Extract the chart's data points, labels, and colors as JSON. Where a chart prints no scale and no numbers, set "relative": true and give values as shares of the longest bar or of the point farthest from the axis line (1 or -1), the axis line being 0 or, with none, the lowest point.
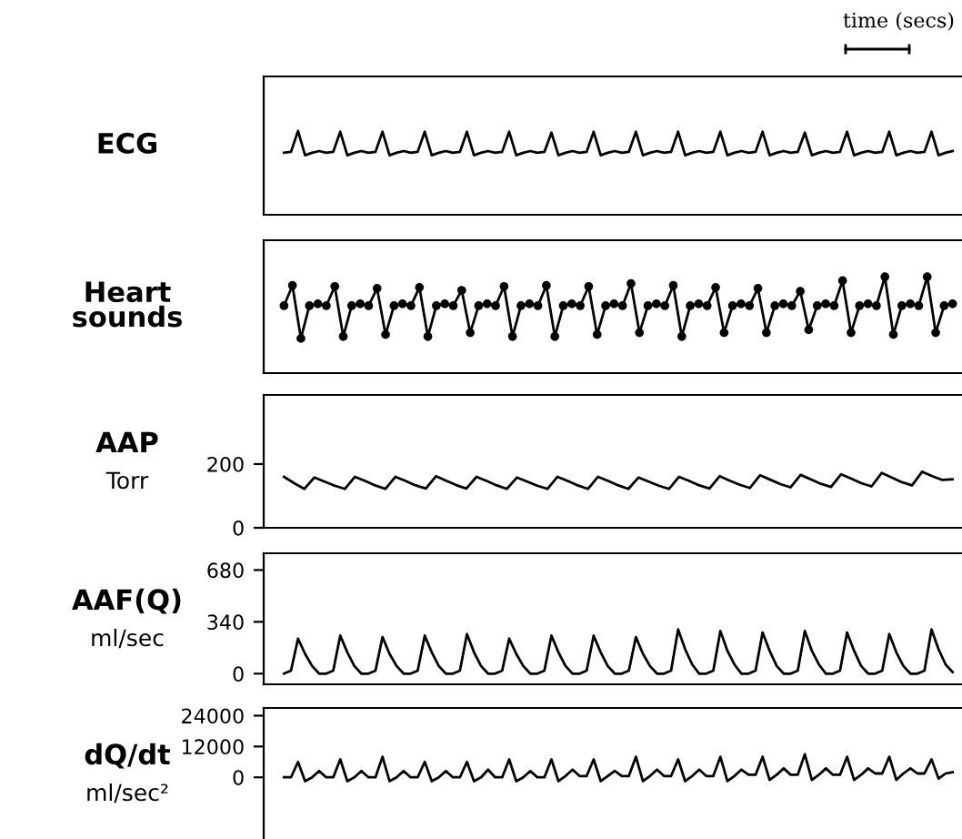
{
  "chart_data": [
    {
      "type": "line",
      "title": "ECG",
      "relative": true,
      "tick_labels": false,
      "grid": false,
      "annotations": [
        "time (secs)"
      ],
      "categories": [
        null,
        null,
        null,
        null,
        null,
        null,
        null,
        null,
        null,
        null,
        null,
        null,
        null,
        null,
        null,
        null,
        null,
        null,
        null,
        null,
        null,
        null,
        null,
        null,
        null,
        null,
        null,
        null,
        null,
        null,
        null,
        null,
        null,
        null,
        null,
        null,
        null,
        null,
        null,
        null,
        null,
        null,
        null,
        null,
        null,
        null,
        null,
        null,
        null,
        null,
        null,
        null,
        null,
        null,
        null,
        null,
        null,
        null,
        null,
        null,
        null,
        null,
        null,
        null,
        null,
        null,
        null,
        null,
        null,
        null,
        null,
        null,
        null,
        null,
        null,
        null,
        null,
        null,
        null,
        null,
        null,
        null,
        null,
        null,
        null,
        null,
        null,
        null,
        null,
        null,
        null,
        null,
        null,
        null,
        null,
        null
      ],
      "series": [
        {
          "color": "#000000",
          "values": [
            0.74,
            0.75,
            1,
            0.71,
            0.74,
            0.76,
            0.74,
            0.75,
            0.99,
            0.71,
            0.74,
            0.76,
            0.74,
            0.75,
            0.99,
            0.71,
            0.74,
            0.76,
            0.74,
            0.75,
            0.99,
            0.71,
            0.74,
            0.76,
            0.74,
            0.75,
            0.99,
            0.71,
            0.74,
            0.76,
            0.74,
            0.75,
            0.99,
            0.71,
            0.74,
            0.76,
            0.74,
            0.75,
            0.98,
            0.71,
            0.74,
            0.76,
            0.74,
            0.75,
            0.99,
            0.71,
            0.74,
            0.76,
            0.74,
            0.75,
            0.99,
            0.71,
            0.74,
            0.76,
            0.74,
            0.75,
            0.99,
            0.71,
            0.74,
            0.76,
            0.74,
            0.75,
            0.99,
            0.71,
            0.74,
            0.76,
            0.74,
            0.75,
            0.99,
            0.71,
            0.74,
            0.76,
            0.74,
            0.75,
            0.98,
            0.71,
            0.74,
            0.76,
            0.74,
            0.75,
            0.99,
            0.71,
            0.74,
            0.76,
            0.74,
            0.75,
            0.99,
            0.71,
            0.74,
            0.76,
            0.74,
            0.75,
            0.99,
            0.71,
            0.74,
            0.76
          ]
        }
      ]
    },
    {
      "type": "line",
      "title": "Heart\nsounds",
      "relative": true,
      "tick_labels": false,
      "grid": false,
      "marker": "circle",
      "categories": [
        null,
        null,
        null,
        null,
        null,
        null,
        null,
        null,
        null,
        null,
        null,
        null,
        null,
        null,
        null,
        null,
        null,
        null,
        null,
        null,
        null,
        null,
        null,
        null,
        null,
        null,
        null,
        null,
        null,
        null,
        null,
        null,
        null,
        null,
        null,
        null,
        null,
        null,
        null,
        null,
        null,
        null,
        null,
        null,
        null,
        null,
        null,
        null,
        null,
        null,
        null,
        null,
        null,
        null,
        null,
        null,
        null,
        null,
        null,
        null,
        null,
        null,
        null,
        null,
        null,
        null,
        null,
        null,
        null,
        null,
        null,
        null,
        null,
        null,
        null,
        null,
        null,
        null,
        null,
        null
      ],
      "series": [
        {
          "color": "#000000",
          "values": [
            0.7,
            0.91,
            0.36,
            0.7,
            0.72,
            0.7,
            0.9,
            0.38,
            0.7,
            0.72,
            0.7,
            0.88,
            0.4,
            0.7,
            0.72,
            0.7,
            0.89,
            0.38,
            0.7,
            0.72,
            0.7,
            0.86,
            0.42,
            0.7,
            0.72,
            0.7,
            0.9,
            0.38,
            0.7,
            0.72,
            0.7,
            0.91,
            0.38,
            0.7,
            0.72,
            0.7,
            0.9,
            0.4,
            0.7,
            0.72,
            0.7,
            0.93,
            0.42,
            0.7,
            0.72,
            0.7,
            0.91,
            0.38,
            0.7,
            0.72,
            0.7,
            0.89,
            0.42,
            0.7,
            0.72,
            0.7,
            0.88,
            0.42,
            0.7,
            0.72,
            0.7,
            0.85,
            0.45,
            0.7,
            0.72,
            0.7,
            0.96,
            0.42,
            0.7,
            0.72,
            0.7,
            1,
            0.4,
            0.7,
            0.72,
            0.7,
            1,
            0.42,
            0.7,
            0.72
          ]
        }
      ]
    },
    {
      "type": "line",
      "title": "AAP",
      "ylabel": "Torr",
      "tick_labels": "y",
      "grid": false,
      "ylim": [
        0,
        417
      ],
      "yticks": [
        0,
        200
      ],
      "categories": [
        null,
        null,
        null,
        null,
        null,
        null,
        null,
        null,
        null,
        null,
        null,
        null,
        null,
        null,
        null,
        null,
        null,
        null,
        null,
        null,
        null,
        null,
        null,
        null,
        null,
        null,
        null,
        null,
        null,
        null,
        null,
        null,
        null,
        null,
        null,
        null,
        null,
        null,
        null,
        null,
        null,
        null,
        null,
        null,
        null,
        null,
        null,
        null,
        null,
        null,
        null,
        null,
        null,
        null,
        null,
        null,
        null,
        null,
        null,
        null,
        null,
        null,
        null,
        null,
        null,
        null,
        null
      ],
      "series": [
        {
          "color": "#000000",
          "values": [
            160,
            140,
            122,
            158,
            145,
            132,
            122,
            160,
            147,
            133,
            122,
            160,
            147,
            133,
            123,
            162,
            148,
            134,
            123,
            160,
            147,
            133,
            122,
            158,
            145,
            132,
            122,
            160,
            147,
            133,
            122,
            160,
            147,
            133,
            122,
            158,
            145,
            132,
            122,
            160,
            147,
            133,
            123,
            162,
            148,
            135,
            125,
            165,
            151,
            137,
            127,
            166,
            152,
            138,
            128,
            168,
            154,
            140,
            130,
            172,
            158,
            143,
            133,
            176,
            162,
            150,
            152
          ]
        }
      ]
    },
    {
      "type": "line",
      "title": "AAF(Q)",
      "ylabel": "ml/sec",
      "tick_labels": "y",
      "grid": false,
      "ylim": [
        -70,
        790
      ],
      "yticks": [
        0,
        340,
        680
      ],
      "categories": [
        null,
        null,
        null,
        null,
        null,
        null,
        null,
        null,
        null,
        null,
        null,
        null,
        null,
        null,
        null,
        null,
        null,
        null,
        null,
        null,
        null,
        null,
        null,
        null,
        null,
        null,
        null,
        null,
        null,
        null,
        null,
        null,
        null,
        null,
        null,
        null,
        null,
        null,
        null,
        null,
        null,
        null,
        null,
        null,
        null,
        null,
        null,
        null,
        null,
        null,
        null,
        null,
        null,
        null,
        null,
        null,
        null,
        null,
        null,
        null,
        null,
        null,
        null,
        null,
        null,
        null,
        null,
        null,
        null,
        null,
        null,
        null,
        null,
        null,
        null,
        null,
        null,
        null,
        null,
        null,
        null,
        null,
        null,
        null,
        null,
        null,
        null,
        null,
        null,
        null,
        null,
        null,
        null,
        null,
        null,
        null
      ],
      "series": [
        {
          "color": "#000000",
          "values": [
            0,
            20,
            230,
            130,
            50,
            0,
            0,
            20,
            250,
            140,
            50,
            0,
            0,
            20,
            240,
            130,
            50,
            0,
            0,
            20,
            250,
            140,
            50,
            0,
            0,
            20,
            260,
            140,
            50,
            0,
            0,
            20,
            230,
            130,
            50,
            0,
            0,
            20,
            250,
            140,
            50,
            0,
            0,
            20,
            250,
            140,
            50,
            0,
            0,
            20,
            240,
            130,
            50,
            0,
            0,
            20,
            290,
            160,
            60,
            0,
            0,
            20,
            280,
            150,
            60,
            0,
            0,
            20,
            270,
            150,
            50,
            0,
            0,
            20,
            280,
            150,
            60,
            0,
            0,
            20,
            270,
            150,
            50,
            0,
            0,
            20,
            260,
            140,
            50,
            0,
            0,
            20,
            290,
            160,
            60,
            10
          ]
        }
      ]
    },
    {
      "type": "line",
      "title": "dQ/dt",
      "ylabel": "ml/sec²",
      "tick_labels": "y",
      "grid": false,
      "ylim": [
        -24000,
        27000
      ],
      "yticks": [
        0,
        12000,
        24000
      ],
      "categories": [
        null,
        null,
        null,
        null,
        null,
        null,
        null,
        null,
        null,
        null,
        null,
        null,
        null,
        null,
        null,
        null,
        null,
        null,
        null,
        null,
        null,
        null,
        null,
        null,
        null,
        null,
        null,
        null,
        null,
        null,
        null,
        null,
        null,
        null,
        null,
        null,
        null,
        null,
        null,
        null,
        null,
        null,
        null,
        null,
        null,
        null,
        null,
        null,
        null,
        null,
        null,
        null,
        null,
        null,
        null,
        null,
        null,
        null,
        null,
        null,
        null,
        null,
        null,
        null,
        null,
        null,
        null,
        null,
        null,
        null,
        null,
        null,
        null,
        null,
        null,
        null,
        null,
        null,
        null,
        null,
        null,
        null,
        null,
        null,
        null,
        null,
        null,
        null,
        null,
        null,
        null,
        null,
        null,
        null,
        null,
        null
      ],
      "series": [
        {
          "color": "#000000",
          "values": [
            0,
            0,
            6000,
            -1500,
            0,
            2500,
            0,
            0,
            7000,
            -1500,
            0,
            2500,
            0,
            0,
            8000,
            -1500,
            0,
            2500,
            0,
            0,
            6000,
            -1500,
            0,
            2500,
            0,
            0,
            6000,
            -1500,
            0,
            3000,
            0,
            0,
            7000,
            -1500,
            0,
            2500,
            0,
            0,
            7000,
            -1500,
            500,
            3000,
            500,
            500,
            7000,
            -1500,
            500,
            2500,
            500,
            500,
            8000,
            -1500,
            500,
            3000,
            500,
            500,
            7000,
            -1500,
            500,
            3000,
            500,
            500,
            8000,
            -1500,
            500,
            3000,
            1000,
            1000,
            8000,
            -1000,
            1000,
            3500,
            1000,
            1000,
            9000,
            -1000,
            1000,
            3500,
            1000,
            1000,
            8000,
            -1000,
            1000,
            3500,
            1500,
            1500,
            8000,
            -1000,
            1500,
            3500,
            1500,
            1500,
            7000,
            -500,
            1500,
            2000
          ]
        }
      ]
    }
  ]
}
